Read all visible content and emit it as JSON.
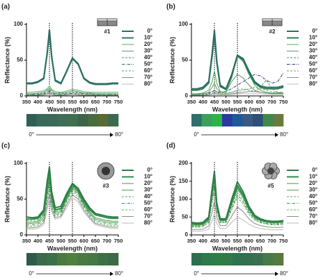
{
  "chart_data": [
    {
      "type": "line",
      "panel": "(a)",
      "inset_label": "#1",
      "x_label": "Wavelength (nm)",
      "y_label": "Reflectance (%)",
      "x": [
        350,
        375,
        400,
        425,
        440,
        450,
        460,
        475,
        500,
        525,
        550,
        575,
        600,
        625,
        650,
        675,
        700,
        725,
        750
      ],
      "xlim": [
        350,
        750
      ],
      "xticks": [
        350,
        400,
        450,
        500,
        550,
        600,
        650,
        700,
        750
      ],
      "ylim": [
        0,
        100
      ],
      "yticks": [
        0,
        50,
        100
      ],
      "vlines": [
        450,
        550
      ],
      "series": [
        {
          "name": "0°",
          "color": "#2c6e63",
          "dash": "solid",
          "values": [
            18,
            18,
            20,
            25,
            60,
            93,
            55,
            22,
            18,
            35,
            53,
            45,
            25,
            19,
            17,
            17,
            17,
            18,
            18
          ]
        },
        {
          "name": "10°",
          "color": "#2e7a5e",
          "dash": "solid",
          "values": [
            17,
            17,
            19,
            24,
            58,
            91,
            53,
            21,
            17,
            34,
            52,
            44,
            24,
            18,
            16,
            16,
            16,
            17,
            17
          ]
        },
        {
          "name": "20°",
          "color": "#4caf50",
          "dash": "solid",
          "values": [
            5,
            5,
            6,
            7,
            10,
            14,
            9,
            6,
            5,
            7,
            9,
            8,
            6,
            5,
            5,
            5,
            5,
            5,
            5
          ]
        },
        {
          "name": "30°",
          "color": "#6b8f7a",
          "dash": "solid",
          "values": [
            3,
            3,
            4,
            5,
            8,
            11,
            7,
            4,
            4,
            5,
            7,
            6,
            4,
            4,
            3,
            3,
            3,
            3,
            3
          ]
        },
        {
          "name": "40°",
          "color": "#3f9a4a",
          "dash": "dashed",
          "values": [
            2,
            2,
            3,
            4,
            6,
            9,
            5,
            3,
            3,
            4,
            5,
            5,
            3,
            3,
            2,
            2,
            2,
            2,
            2
          ]
        },
        {
          "name": "50°",
          "color": "#2f5f7a",
          "dash": "dashdot",
          "values": [
            2,
            2,
            2,
            3,
            5,
            7,
            4,
            3,
            2,
            3,
            4,
            4,
            3,
            2,
            2,
            2,
            2,
            2,
            2
          ]
        },
        {
          "name": "60°",
          "color": "#6f9f70",
          "dash": "dashed",
          "values": [
            1,
            1,
            2,
            2,
            4,
            5,
            3,
            2,
            2,
            2,
            3,
            3,
            2,
            2,
            1,
            1,
            1,
            1,
            1
          ]
        },
        {
          "name": "70°",
          "color": "#888888",
          "dash": "solid",
          "values": [
            1,
            1,
            1,
            2,
            3,
            4,
            2,
            1,
            1,
            2,
            2,
            2,
            1,
            1,
            1,
            1,
            1,
            1,
            1
          ]
        },
        {
          "name": "80°",
          "color": "#bbbbbb",
          "dash": "solid",
          "values": [
            1,
            1,
            1,
            1,
            2,
            3,
            2,
            1,
            1,
            1,
            2,
            1,
            1,
            1,
            1,
            1,
            1,
            1,
            1
          ]
        }
      ],
      "swatches": [
        "#2f5f56",
        "#3a6b5a",
        "#3c6a58",
        "#3f6d58",
        "#40704f",
        "#3e6548",
        "#4a6a40",
        "#5a6a35",
        "#3c6a50"
      ],
      "strip_labels": [
        "0°",
        "80°"
      ]
    },
    {
      "type": "line",
      "panel": "(b)",
      "inset_label": "#2",
      "x_label": "Wavelength (nm)",
      "y_label": "Reflectance (%)",
      "x": [
        350,
        375,
        400,
        425,
        440,
        450,
        460,
        475,
        500,
        525,
        550,
        575,
        600,
        625,
        650,
        675,
        700,
        725,
        750
      ],
      "xlim": [
        350,
        750
      ],
      "xticks": [
        350,
        400,
        450,
        500,
        550,
        600,
        650,
        700,
        750
      ],
      "ylim": [
        0,
        100
      ],
      "yticks": [
        0,
        50,
        100
      ],
      "vlines": [
        450,
        550
      ],
      "series": [
        {
          "name": "0°",
          "color": "#2c6e63",
          "dash": "solid",
          "values": [
            10,
            10,
            12,
            20,
            60,
            92,
            50,
            15,
            10,
            30,
            57,
            52,
            35,
            20,
            14,
            12,
            12,
            12,
            14
          ]
        },
        {
          "name": "10°",
          "color": "#2e7a5e",
          "dash": "solid",
          "values": [
            8,
            8,
            10,
            18,
            55,
            88,
            47,
            13,
            9,
            28,
            56,
            50,
            33,
            18,
            12,
            10,
            10,
            10,
            12
          ]
        },
        {
          "name": "20°",
          "color": "#4caf50",
          "dash": "solid",
          "values": [
            3,
            3,
            4,
            8,
            20,
            35,
            18,
            6,
            5,
            25,
            55,
            48,
            30,
            15,
            8,
            5,
            4,
            4,
            4
          ]
        },
        {
          "name": "30°",
          "color": "#6b8f7a",
          "dash": "solid",
          "values": [
            2,
            2,
            3,
            5,
            12,
            18,
            10,
            5,
            5,
            20,
            30,
            25,
            15,
            8,
            5,
            4,
            4,
            4,
            4
          ]
        },
        {
          "name": "40°",
          "color": "#3f9a4a",
          "dash": "dashed",
          "values": [
            2,
            2,
            2,
            3,
            6,
            8,
            5,
            3,
            3,
            5,
            8,
            10,
            8,
            6,
            12,
            22,
            10,
            5,
            4
          ]
        },
        {
          "name": "50°",
          "color": "#23357a",
          "dash": "dashdot",
          "values": [
            2,
            2,
            3,
            4,
            6,
            8,
            6,
            5,
            6,
            10,
            15,
            20,
            25,
            30,
            28,
            22,
            18,
            20,
            32
          ]
        },
        {
          "name": "60°",
          "color": "#6f9f70",
          "dash": "dashed",
          "values": [
            1,
            1,
            2,
            3,
            5,
            6,
            5,
            4,
            4,
            5,
            6,
            8,
            10,
            12,
            10,
            8,
            6,
            5,
            5
          ]
        },
        {
          "name": "70°",
          "color": "#888888",
          "dash": "solid",
          "values": [
            1,
            1,
            1,
            2,
            3,
            4,
            3,
            2,
            2,
            3,
            4,
            5,
            6,
            6,
            5,
            4,
            3,
            3,
            3
          ]
        },
        {
          "name": "80°",
          "color": "#bbbbbb",
          "dash": "solid",
          "values": [
            1,
            1,
            1,
            1,
            2,
            3,
            2,
            2,
            2,
            2,
            3,
            3,
            3,
            3,
            3,
            2,
            2,
            2,
            2
          ]
        }
      ],
      "swatches": [
        "#2e6f6a",
        "#3aa05a",
        "#2db34a",
        "#2a3aa0",
        "#1e5a9a",
        "#3a5a80",
        "#2d4f7a",
        "#3f8a4a",
        "#6a7a40"
      ],
      "strip_labels": [
        "0°",
        "80°"
      ]
    },
    {
      "type": "line",
      "panel": "(c)",
      "inset_label": "#3",
      "x_label": "Wavelength (nm)",
      "y_label": "Reflectance (%)",
      "x": [
        350,
        375,
        400,
        425,
        440,
        450,
        460,
        475,
        500,
        525,
        550,
        575,
        600,
        625,
        650,
        675,
        700,
        725,
        750
      ],
      "xlim": [
        350,
        750
      ],
      "xticks": [
        350,
        400,
        450,
        500,
        550,
        600,
        650,
        700,
        750
      ],
      "ylim": [
        0,
        100
      ],
      "yticks": [
        0,
        50,
        100
      ],
      "vlines": [
        450,
        550
      ],
      "series": [
        {
          "name": "0°",
          "color": "#2e7d4a",
          "dash": "solid",
          "values": [
            25,
            24,
            25,
            35,
            75,
            95,
            60,
            38,
            40,
            58,
            72,
            65,
            50,
            38,
            30,
            28,
            26,
            25,
            25
          ]
        },
        {
          "name": "10°",
          "color": "#2f8a48",
          "dash": "solid",
          "values": [
            22,
            22,
            23,
            32,
            70,
            90,
            56,
            35,
            37,
            55,
            70,
            62,
            47,
            35,
            28,
            26,
            24,
            23,
            23
          ]
        },
        {
          "name": "20°",
          "color": "#3f9a4a",
          "dash": "solid",
          "values": [
            18,
            18,
            19,
            28,
            62,
            82,
            50,
            32,
            34,
            52,
            67,
            60,
            44,
            32,
            24,
            22,
            20,
            19,
            19
          ]
        },
        {
          "name": "30°",
          "color": "#4aa050",
          "dash": "solid",
          "values": [
            16,
            16,
            17,
            25,
            58,
            78,
            47,
            30,
            32,
            50,
            65,
            58,
            42,
            30,
            22,
            20,
            18,
            17,
            17
          ]
        },
        {
          "name": "40°",
          "color": "#5aa85a",
          "dash": "dashed",
          "values": [
            20,
            20,
            21,
            30,
            60,
            80,
            50,
            34,
            36,
            54,
            68,
            62,
            48,
            36,
            28,
            26,
            24,
            23,
            23
          ]
        },
        {
          "name": "50°",
          "color": "#3c8a50",
          "dash": "dashdot",
          "values": [
            14,
            14,
            15,
            22,
            52,
            72,
            44,
            28,
            30,
            48,
            63,
            56,
            40,
            28,
            20,
            18,
            16,
            15,
            15
          ]
        },
        {
          "name": "60°",
          "color": "#6faa6a",
          "dash": "dashed",
          "values": [
            12,
            12,
            13,
            20,
            48,
            66,
            40,
            26,
            28,
            45,
            60,
            53,
            38,
            26,
            18,
            16,
            14,
            13,
            13
          ]
        },
        {
          "name": "70°",
          "color": "#8a8a8a",
          "dash": "solid",
          "values": [
            10,
            10,
            11,
            17,
            42,
            58,
            36,
            24,
            26,
            42,
            56,
            50,
            35,
            24,
            16,
            14,
            12,
            11,
            11
          ]
        },
        {
          "name": "80°",
          "color": "#bbbbbb",
          "dash": "solid",
          "values": [
            8,
            8,
            9,
            14,
            35,
            50,
            32,
            22,
            24,
            38,
            52,
            46,
            32,
            22,
            14,
            12,
            10,
            9,
            9
          ]
        }
      ],
      "swatches": [
        "#2f5a4a",
        "#3a6a48",
        "#3c7048",
        "#4a7a40",
        "#4f8040",
        "#4a7a42",
        "#467844",
        "#3e7048",
        "#3a6a46"
      ],
      "strip_labels": [
        "0°",
        "80°"
      ]
    },
    {
      "type": "line",
      "panel": "(d)",
      "inset_label": "#5",
      "x_label": "Wavelength (nm)",
      "y_label": "Reflectance (%)",
      "x": [
        350,
        375,
        400,
        425,
        440,
        450,
        460,
        475,
        500,
        525,
        550,
        575,
        600,
        625,
        650,
        675,
        700,
        725,
        750
      ],
      "xlim": [
        350,
        750
      ],
      "xticks": [
        350,
        400,
        450,
        500,
        550,
        600,
        650,
        700,
        750
      ],
      "ylim": [
        0,
        200
      ],
      "yticks": [
        0,
        50,
        100,
        150,
        200
      ],
      "vlines": [
        450,
        550
      ],
      "series": [
        {
          "name": "0°",
          "color": "#2e7d4a",
          "dash": "solid",
          "values": [
            35,
            33,
            35,
            50,
            130,
            178,
            90,
            45,
            45,
            100,
            148,
            120,
            80,
            55,
            45,
            40,
            38,
            38,
            40
          ]
        },
        {
          "name": "10°",
          "color": "#2f8a48",
          "dash": "solid",
          "values": [
            32,
            30,
            32,
            46,
            122,
            168,
            85,
            42,
            42,
            92,
            138,
            112,
            75,
            52,
            42,
            38,
            36,
            36,
            38
          ]
        },
        {
          "name": "20°",
          "color": "#3f9a4a",
          "dash": "solid",
          "values": [
            28,
            27,
            29,
            42,
            112,
            155,
            78,
            40,
            40,
            85,
            128,
            104,
            70,
            48,
            40,
            36,
            34,
            34,
            35
          ]
        },
        {
          "name": "30°",
          "color": "#4aa050",
          "dash": "solid",
          "values": [
            30,
            29,
            31,
            44,
            115,
            160,
            80,
            41,
            41,
            88,
            132,
            108,
            72,
            50,
            41,
            37,
            35,
            35,
            36
          ]
        },
        {
          "name": "40°",
          "color": "#5aa85a",
          "dash": "dashed",
          "values": [
            26,
            25,
            27,
            40,
            105,
            145,
            74,
            38,
            38,
            80,
            120,
            98,
            66,
            46,
            38,
            34,
            32,
            32,
            33
          ]
        },
        {
          "name": "50°",
          "color": "#3c8a50",
          "dash": "dashdot",
          "values": [
            24,
            23,
            25,
            37,
            98,
            135,
            70,
            36,
            36,
            75,
            112,
            92,
            62,
            44,
            36,
            32,
            30,
            30,
            31
          ]
        },
        {
          "name": "60°",
          "color": "#6faa6a",
          "dash": "dashed",
          "values": [
            22,
            21,
            23,
            34,
            90,
            125,
            65,
            34,
            34,
            70,
            105,
            86,
            58,
            42,
            34,
            30,
            28,
            28,
            29
          ]
        },
        {
          "name": "70°",
          "color": "#8a8a8a",
          "dash": "solid",
          "values": [
            15,
            15,
            16,
            25,
            65,
            95,
            50,
            26,
            26,
            52,
            78,
            65,
            45,
            32,
            26,
            23,
            21,
            21,
            22
          ]
        },
        {
          "name": "80°",
          "color": "#bbbbbb",
          "dash": "solid",
          "values": [
            10,
            10,
            11,
            16,
            40,
            60,
            32,
            18,
            18,
            35,
            50,
            42,
            30,
            22,
            18,
            16,
            14,
            14,
            15
          ]
        }
      ],
      "swatches": [
        "#2e6e50",
        "#2e7a4a",
        "#2f7e48",
        "#327a48",
        "#2e7250",
        "#356e50",
        "#3a7050",
        "#487a48",
        "#567a3e"
      ],
      "strip_labels": [
        "0°",
        "80°"
      ]
    }
  ]
}
